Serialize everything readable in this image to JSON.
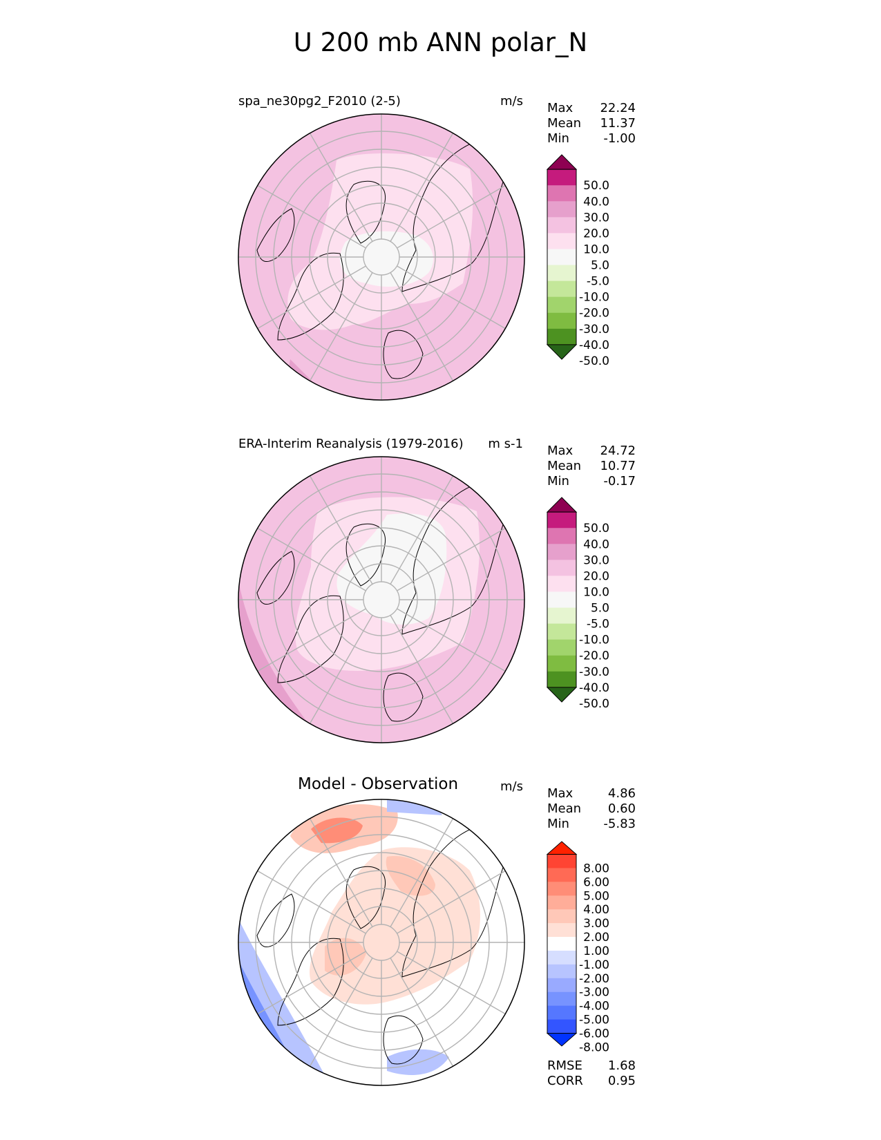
{
  "title": "U 200 mb ANN polar_N",
  "colors": {
    "test_levels_fill": [
      "#276419",
      "#4d9221",
      "#7fbc41",
      "#a1d46c",
      "#c4e79a",
      "#e6f5d0",
      "#f7f7f7",
      "#fde0ef",
      "#f4c2e1",
      "#e6a0cc",
      "#de75b1",
      "#c51b7d",
      "#8e0152"
    ],
    "diff_levels_fill": [
      "#0033ff",
      "#3355ff",
      "#5577ff",
      "#7793ff",
      "#99aaff",
      "#b7c4ff",
      "#d6deff",
      "#ffffff",
      "#ffe0d6",
      "#ffc8b8",
      "#ffad99",
      "#ff8d77",
      "#ff6a55",
      "#ff4433",
      "#ff2200"
    ],
    "land_outline": "#000000",
    "grid": "#b3b3b3"
  },
  "chart_data": [
    {
      "type": "heatmap",
      "projection": "polar stereographic (north)",
      "title": "spa_ne30pg2_F2010 (2-5)",
      "units": "m/s",
      "stats": {
        "max_label": "Max",
        "max": "22.24",
        "mean_label": "Mean",
        "mean": "11.37",
        "min_label": "Min",
        "min": "-1.00"
      },
      "colorbar_ticks": [
        "50.0",
        "40.0",
        "30.0",
        "20.0",
        "10.0",
        "5.0",
        "-5.0",
        "-10.0",
        "-20.0",
        "-30.0",
        "-40.0",
        "-50.0"
      ]
    },
    {
      "type": "heatmap",
      "projection": "polar stereographic (north)",
      "title": "ERA-Interim Reanalysis (1979-2016)",
      "units": "m s-1",
      "stats": {
        "max_label": "Max",
        "max": "24.72",
        "mean_label": "Mean",
        "mean": "10.77",
        "min_label": "Min",
        "min": "-0.17"
      },
      "colorbar_ticks": [
        "50.0",
        "40.0",
        "30.0",
        "20.0",
        "10.0",
        "5.0",
        "-5.0",
        "-10.0",
        "-20.0",
        "-30.0",
        "-40.0",
        "-50.0"
      ]
    },
    {
      "type": "heatmap",
      "projection": "polar stereographic (north)",
      "title": "Model - Observation",
      "units": "m/s",
      "stats": {
        "max_label": "Max",
        "max": "4.86",
        "mean_label": "Mean",
        "mean": "0.60",
        "min_label": "Min",
        "min": "-5.83"
      },
      "colorbar_ticks": [
        "8.00",
        "6.00",
        "5.00",
        "4.00",
        "3.00",
        "2.00",
        "1.00",
        "-1.00",
        "-2.00",
        "-3.00",
        "-4.00",
        "-5.00",
        "-6.00",
        "-8.00"
      ],
      "metrics": {
        "rmse_label": "RMSE",
        "rmse": "1.68",
        "corr_label": "CORR",
        "corr": "0.95"
      }
    }
  ]
}
